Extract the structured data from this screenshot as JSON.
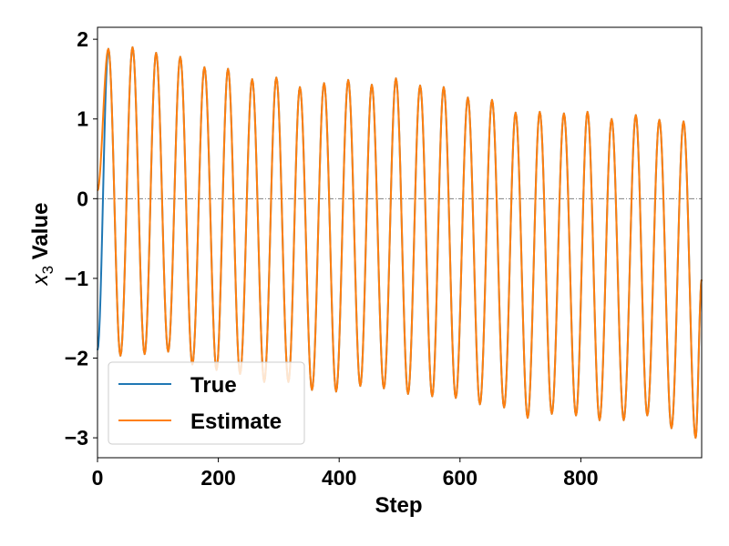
{
  "chart_data": {
    "type": "line",
    "xlabel": "Step",
    "ylabel_symbol": "x",
    "ylabel_subscript": "3",
    "ylabel_text": "Value",
    "xlim": [
      0,
      1000
    ],
    "ylim": [
      -3.25,
      2.15
    ],
    "x_ticks": [
      0,
      200,
      400,
      600,
      800
    ],
    "x_tick_labels": [
      "0",
      "200",
      "400",
      "600",
      "800"
    ],
    "y_ticks": [
      -3,
      -2,
      -1,
      0,
      1,
      2
    ],
    "y_tick_labels": [
      "−3",
      "−2",
      "−1",
      "0",
      "1",
      "2"
    ],
    "zero_reference_line": 0,
    "grid": false,
    "legend_position": "lower-left",
    "oscillation_period_steps": 39.6,
    "series": [
      {
        "name": "True",
        "color": "#1f77b4",
        "x_range": [
          0,
          1000
        ],
        "start_value": -1.9,
        "peaks": [
          [
            18,
            1.88
          ],
          [
            58,
            1.9
          ],
          [
            97,
            1.83
          ],
          [
            137,
            1.78
          ],
          [
            177,
            1.65
          ],
          [
            216,
            1.63
          ],
          [
            256,
            1.5
          ],
          [
            296,
            1.52
          ],
          [
            335,
            1.4
          ],
          [
            375,
            1.45
          ],
          [
            415,
            1.49
          ],
          [
            454,
            1.43
          ],
          [
            494,
            1.51
          ],
          [
            534,
            1.42
          ],
          [
            573,
            1.4
          ],
          [
            613,
            1.27
          ],
          [
            653,
            1.24
          ],
          [
            692,
            1.08
          ],
          [
            732,
            1.09
          ],
          [
            772,
            1.07
          ],
          [
            811,
            1.09
          ],
          [
            851,
            1.0
          ],
          [
            891,
            1.05
          ],
          [
            930,
            0.99
          ],
          [
            970,
            0.97
          ]
        ],
        "troughs": [
          [
            38,
            -1.97
          ],
          [
            78,
            -1.95
          ],
          [
            117,
            -1.92
          ],
          [
            157,
            -2.08
          ],
          [
            197,
            -2.15
          ],
          [
            236,
            -2.2
          ],
          [
            276,
            -2.3
          ],
          [
            316,
            -2.3
          ],
          [
            355,
            -2.4
          ],
          [
            395,
            -2.42
          ],
          [
            435,
            -2.35
          ],
          [
            474,
            -2.38
          ],
          [
            514,
            -2.45
          ],
          [
            554,
            -2.48
          ],
          [
            593,
            -2.5
          ],
          [
            633,
            -2.58
          ],
          [
            673,
            -2.62
          ],
          [
            712,
            -2.75
          ],
          [
            752,
            -2.7
          ],
          [
            792,
            -2.72
          ],
          [
            831,
            -2.78
          ],
          [
            871,
            -2.78
          ],
          [
            910,
            -2.72
          ],
          [
            950,
            -2.88
          ],
          [
            990,
            -3.0
          ]
        ]
      },
      {
        "name": "Estimate",
        "color": "#ff7f0e",
        "x_range": [
          0,
          1000
        ],
        "start_value": 0.1,
        "peaks": [
          [
            18,
            1.88
          ],
          [
            58,
            1.9
          ],
          [
            97,
            1.83
          ],
          [
            137,
            1.78
          ],
          [
            177,
            1.65
          ],
          [
            216,
            1.63
          ],
          [
            256,
            1.5
          ],
          [
            296,
            1.52
          ],
          [
            335,
            1.4
          ],
          [
            375,
            1.45
          ],
          [
            415,
            1.49
          ],
          [
            454,
            1.43
          ],
          [
            494,
            1.51
          ],
          [
            534,
            1.42
          ],
          [
            573,
            1.4
          ],
          [
            613,
            1.27
          ],
          [
            653,
            1.24
          ],
          [
            692,
            1.08
          ],
          [
            732,
            1.09
          ],
          [
            772,
            1.07
          ],
          [
            811,
            1.09
          ],
          [
            851,
            1.0
          ],
          [
            891,
            1.05
          ],
          [
            930,
            0.99
          ],
          [
            970,
            0.97
          ]
        ],
        "troughs": [
          [
            38,
            -1.97
          ],
          [
            78,
            -1.95
          ],
          [
            117,
            -1.92
          ],
          [
            157,
            -2.08
          ],
          [
            197,
            -2.15
          ],
          [
            236,
            -2.2
          ],
          [
            276,
            -2.3
          ],
          [
            316,
            -2.3
          ],
          [
            355,
            -2.4
          ],
          [
            395,
            -2.42
          ],
          [
            435,
            -2.35
          ],
          [
            474,
            -2.38
          ],
          [
            514,
            -2.45
          ],
          [
            554,
            -2.48
          ],
          [
            593,
            -2.5
          ],
          [
            633,
            -2.58
          ],
          [
            673,
            -2.62
          ],
          [
            712,
            -2.75
          ],
          [
            752,
            -2.7
          ],
          [
            792,
            -2.72
          ],
          [
            831,
            -2.78
          ],
          [
            871,
            -2.78
          ],
          [
            910,
            -2.72
          ],
          [
            950,
            -2.88
          ],
          [
            990,
            -3.0
          ]
        ]
      }
    ]
  }
}
